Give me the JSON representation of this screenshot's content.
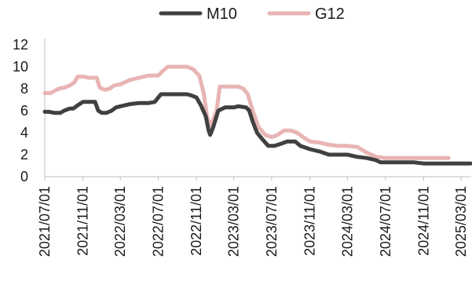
{
  "chart_data": {
    "type": "line",
    "x_ticks": [
      "2021/07/01",
      "2021/11/01",
      "2022/03/01",
      "2022/07/01",
      "2022/11/01",
      "2023/03/01",
      "2023/07/01",
      "2023/11/01",
      "2024/03/01",
      "2024/07/01",
      "2024/11/01",
      "2025/03/01"
    ],
    "ylim": [
      0,
      12
    ],
    "yticks": [
      0,
      2,
      4,
      6,
      8,
      10,
      12
    ],
    "grid": false,
    "legend_position": "top-center",
    "colors": {
      "M10": "#404040",
      "G12": "#e8b4b4"
    },
    "series": [
      {
        "name": "M10",
        "points": [
          [
            "2021/07/01",
            5.9
          ],
          [
            "2021/07/15",
            5.9
          ],
          [
            "2021/08/01",
            5.8
          ],
          [
            "2021/08/20",
            5.8
          ],
          [
            "2021/09/01",
            6.0
          ],
          [
            "2021/09/20",
            6.2
          ],
          [
            "2021/10/01",
            6.2
          ],
          [
            "2021/10/15",
            6.5
          ],
          [
            "2021/11/01",
            6.8
          ],
          [
            "2021/11/15",
            6.8
          ],
          [
            "2021/12/10",
            6.8
          ],
          [
            "2021/12/20",
            6.0
          ],
          [
            "2022/01/01",
            5.8
          ],
          [
            "2022/01/15",
            5.8
          ],
          [
            "2022/02/01",
            6.0
          ],
          [
            "2022/02/15",
            6.3
          ],
          [
            "2022/03/01",
            6.4
          ],
          [
            "2022/04/01",
            6.6
          ],
          [
            "2022/05/01",
            6.7
          ],
          [
            "2022/06/01",
            6.7
          ],
          [
            "2022/06/20",
            6.8
          ],
          [
            "2022/07/01",
            7.2
          ],
          [
            "2022/07/10",
            7.5
          ],
          [
            "2022/08/01",
            7.5
          ],
          [
            "2022/09/01",
            7.5
          ],
          [
            "2022/10/01",
            7.5
          ],
          [
            "2022/10/15",
            7.4
          ],
          [
            "2022/11/01",
            7.2
          ],
          [
            "2022/11/15",
            6.5
          ],
          [
            "2022/12/01",
            5.5
          ],
          [
            "2022/12/10",
            4.2
          ],
          [
            "2022/12/15",
            3.8
          ],
          [
            "2022/12/25",
            4.5
          ],
          [
            "2023/01/10",
            6.0
          ],
          [
            "2023/02/01",
            6.3
          ],
          [
            "2023/03/01",
            6.3
          ],
          [
            "2023/03/15",
            6.4
          ],
          [
            "2023/04/10",
            6.3
          ],
          [
            "2023/04/20",
            6.0
          ],
          [
            "2023/05/01",
            5.0
          ],
          [
            "2023/05/15",
            4.0
          ],
          [
            "2023/06/01",
            3.4
          ],
          [
            "2023/06/20",
            2.8
          ],
          [
            "2023/07/10",
            2.8
          ],
          [
            "2023/08/01",
            3.0
          ],
          [
            "2023/08/20",
            3.2
          ],
          [
            "2023/09/15",
            3.2
          ],
          [
            "2023/10/01",
            2.8
          ],
          [
            "2023/11/01",
            2.5
          ],
          [
            "2023/12/01",
            2.3
          ],
          [
            "2024/01/01",
            2.0
          ],
          [
            "2024/02/01",
            2.0
          ],
          [
            "2024/03/01",
            2.0
          ],
          [
            "2024/04/01",
            1.8
          ],
          [
            "2024/05/01",
            1.7
          ],
          [
            "2024/06/01",
            1.5
          ],
          [
            "2024/06/15",
            1.3
          ],
          [
            "2024/08/01",
            1.3
          ],
          [
            "2024/10/01",
            1.3
          ],
          [
            "2024/11/01",
            1.2
          ],
          [
            "2025/01/01",
            1.2
          ],
          [
            "2025/03/01",
            1.2
          ],
          [
            "2025/04/01",
            1.2
          ]
        ]
      },
      {
        "name": "G12",
        "points": [
          [
            "2021/07/01",
            7.6
          ],
          [
            "2021/07/20",
            7.6
          ],
          [
            "2021/08/01",
            7.8
          ],
          [
            "2021/08/15",
            8.0
          ],
          [
            "2021/09/01",
            8.1
          ],
          [
            "2021/09/20",
            8.3
          ],
          [
            "2021/10/05",
            8.6
          ],
          [
            "2021/10/15",
            9.1
          ],
          [
            "2021/11/01",
            9.1
          ],
          [
            "2021/11/20",
            9.0
          ],
          [
            "2021/12/15",
            9.0
          ],
          [
            "2021/12/25",
            8.1
          ],
          [
            "2022/01/10",
            7.9
          ],
          [
            "2022/01/25",
            8.0
          ],
          [
            "2022/02/10",
            8.3
          ],
          [
            "2022/03/01",
            8.4
          ],
          [
            "2022/04/01",
            8.8
          ],
          [
            "2022/05/01",
            9.0
          ],
          [
            "2022/06/01",
            9.2
          ],
          [
            "2022/07/01",
            9.2
          ],
          [
            "2022/07/15",
            9.6
          ],
          [
            "2022/08/01",
            10.0
          ],
          [
            "2022/09/01",
            10.0
          ],
          [
            "2022/10/01",
            10.0
          ],
          [
            "2022/10/20",
            9.8
          ],
          [
            "2022/11/10",
            9.2
          ],
          [
            "2022/11/25",
            7.5
          ],
          [
            "2022/12/05",
            5.5
          ],
          [
            "2022/12/15",
            4.6
          ],
          [
            "2022/12/25",
            5.2
          ],
          [
            "2023/01/05",
            6.0
          ],
          [
            "2023/01/15",
            8.2
          ],
          [
            "2023/02/15",
            8.2
          ],
          [
            "2023/03/15",
            8.2
          ],
          [
            "2023/04/01",
            8.0
          ],
          [
            "2023/04/15",
            7.5
          ],
          [
            "2023/05/01",
            6.0
          ],
          [
            "2023/05/20",
            4.5
          ],
          [
            "2023/06/10",
            3.8
          ],
          [
            "2023/07/01",
            3.6
          ],
          [
            "2023/07/20",
            3.8
          ],
          [
            "2023/08/10",
            4.2
          ],
          [
            "2023/09/01",
            4.2
          ],
          [
            "2023/09/20",
            4.0
          ],
          [
            "2023/10/10",
            3.6
          ],
          [
            "2023/11/01",
            3.2
          ],
          [
            "2023/12/01",
            3.1
          ],
          [
            "2024/01/01",
            2.9
          ],
          [
            "2024/02/01",
            2.8
          ],
          [
            "2024/03/01",
            2.8
          ],
          [
            "2024/04/01",
            2.7
          ],
          [
            "2024/05/01",
            2.2
          ],
          [
            "2024/06/01",
            1.8
          ],
          [
            "2024/07/01",
            1.7
          ],
          [
            "2024/08/01",
            1.7
          ],
          [
            "2024/10/01",
            1.7
          ],
          [
            "2024/12/01",
            1.7
          ],
          [
            "2025/01/20",
            1.7
          ]
        ]
      }
    ]
  }
}
